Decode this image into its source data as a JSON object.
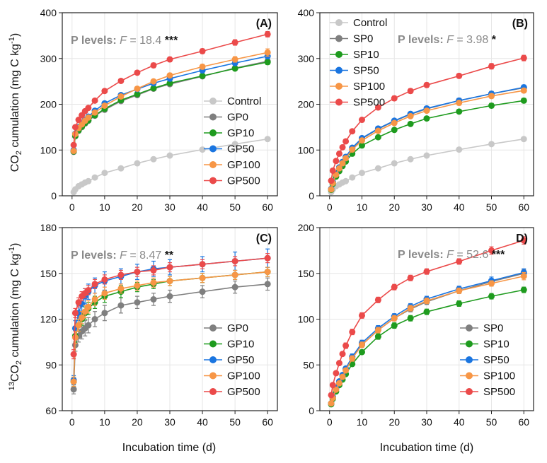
{
  "figure": {
    "y_label_top": {
      "base": "CO",
      "sub": "2",
      "mid": " cumulation (mg C kg",
      "sup": "-1",
      "end": ")"
    },
    "y_label_bottom": {
      "pre_sup": "13",
      "base": "CO",
      "sub": "2",
      "mid": " cumulation (mg C kg",
      "sup": "-1",
      "end": ")"
    },
    "x_label": "Incubation time (d)"
  },
  "chart_data": [
    {
      "type": "line",
      "panel": "(A)",
      "annotation": {
        "label": "P levels:",
        "f_symbol": "F",
        "f_value": "= 18.4",
        "stars": "***"
      },
      "x": [
        0.5,
        1,
        2,
        3,
        4,
        5,
        7,
        10,
        15,
        20,
        25,
        30,
        40,
        50,
        60
      ],
      "xlim": [
        -3,
        63
      ],
      "ylim": [
        0,
        400
      ],
      "xticks": [
        "0",
        "10",
        "20",
        "30",
        "40",
        "50",
        "60"
      ],
      "yticks": [
        "0",
        "100",
        "200",
        "300",
        "400"
      ],
      "legend_position": "bottom-right",
      "series": [
        {
          "name": "Control",
          "color": "#c8c8c8",
          "values": [
            8,
            14,
            21,
            25,
            29,
            32,
            40,
            50,
            60,
            71,
            80,
            88,
            101,
            113,
            124
          ],
          "err": [
            2,
            2,
            2,
            2,
            2,
            2,
            2,
            2,
            2,
            2,
            2,
            2,
            3,
            3,
            3
          ]
        },
        {
          "name": "GP0",
          "color": "#7f7f7f",
          "values": [
            96,
            130,
            142,
            150,
            158,
            164,
            175,
            188,
            207,
            220,
            234,
            244,
            261,
            279,
            294
          ],
          "err": [
            3,
            3,
            3,
            3,
            3,
            3,
            3,
            4,
            4,
            4,
            4,
            4,
            4,
            4,
            5
          ]
        },
        {
          "name": "GP10",
          "color": "#1e9b1e",
          "values": [
            97,
            131,
            143,
            151,
            159,
            165,
            176,
            190,
            209,
            222,
            235,
            246,
            262,
            278,
            292
          ],
          "err": [
            3,
            3,
            3,
            3,
            3,
            3,
            3,
            4,
            4,
            4,
            4,
            4,
            4,
            4,
            5
          ]
        },
        {
          "name": "GP50",
          "color": "#1a75e0",
          "values": [
            100,
            136,
            150,
            158,
            166,
            173,
            186,
            202,
            220,
            233,
            246,
            256,
            274,
            290,
            305
          ],
          "err": [
            3,
            3,
            3,
            3,
            3,
            3,
            4,
            4,
            4,
            4,
            4,
            5,
            5,
            5,
            6
          ]
        },
        {
          "name": "GP100",
          "color": "#f79646",
          "values": [
            98,
            135,
            148,
            156,
            164,
            171,
            182,
            197,
            217,
            234,
            250,
            263,
            282,
            298,
            313
          ],
          "err": [
            3,
            3,
            3,
            3,
            3,
            3,
            4,
            4,
            4,
            4,
            4,
            5,
            5,
            6,
            8
          ]
        },
        {
          "name": "GP500",
          "color": "#eb4a4a",
          "values": [
            111,
            150,
            166,
            176,
            185,
            192,
            208,
            229,
            251,
            269,
            285,
            298,
            316,
            335,
            353
          ],
          "err": [
            3,
            3,
            3,
            3,
            3,
            3,
            4,
            4,
            4,
            4,
            5,
            5,
            5,
            6,
            6
          ]
        }
      ]
    },
    {
      "type": "line",
      "panel": "(B)",
      "annotation": {
        "label": "P levels:",
        "f_symbol": "F",
        "f_value": "= 3.98",
        "stars": "*"
      },
      "x": [
        0.5,
        1,
        2,
        3,
        4,
        5,
        7,
        10,
        15,
        20,
        25,
        30,
        40,
        50,
        60
      ],
      "xlim": [
        -3,
        63
      ],
      "ylim": [
        0,
        400
      ],
      "xticks": [
        "0",
        "10",
        "20",
        "30",
        "40",
        "50",
        "60"
      ],
      "yticks": [
        "0",
        "100",
        "200",
        "300",
        "400"
      ],
      "legend_position": "top-left",
      "series": [
        {
          "name": "Control",
          "color": "#c8c8c8",
          "values": [
            8,
            14,
            21,
            25,
            29,
            32,
            40,
            50,
            60,
            71,
            80,
            88,
            101,
            113,
            124
          ],
          "err": [
            2,
            2,
            2,
            2,
            2,
            2,
            2,
            2,
            2,
            2,
            2,
            2,
            3,
            3,
            3
          ]
        },
        {
          "name": "SP0",
          "color": "#7f7f7f",
          "values": [
            15,
            30,
            48,
            62,
            74,
            85,
            104,
            125,
            146,
            163,
            178,
            190,
            208,
            223,
            236
          ],
          "err": [
            2,
            2,
            3,
            3,
            3,
            3,
            4,
            4,
            4,
            4,
            4,
            4,
            5,
            5,
            5
          ]
        },
        {
          "name": "SP10",
          "color": "#1e9b1e",
          "values": [
            13,
            26,
            42,
            54,
            65,
            75,
            92,
            110,
            128,
            144,
            157,
            169,
            184,
            197,
            208
          ],
          "err": [
            2,
            2,
            3,
            3,
            3,
            3,
            3,
            4,
            4,
            4,
            4,
            4,
            4,
            5,
            5
          ]
        },
        {
          "name": "SP50",
          "color": "#1a75e0",
          "values": [
            15,
            30,
            48,
            62,
            74,
            85,
            105,
            126,
            147,
            164,
            179,
            191,
            208,
            223,
            237
          ],
          "err": [
            2,
            2,
            3,
            3,
            3,
            3,
            4,
            4,
            4,
            4,
            4,
            4,
            5,
            5,
            5
          ]
        },
        {
          "name": "SP100",
          "color": "#f79646",
          "values": [
            14,
            28,
            46,
            60,
            71,
            82,
            101,
            121,
            142,
            159,
            174,
            186,
            203,
            218,
            230
          ],
          "err": [
            2,
            2,
            3,
            3,
            3,
            3,
            4,
            4,
            4,
            4,
            4,
            4,
            5,
            5,
            5
          ]
        },
        {
          "name": "SP500",
          "color": "#eb4a4a",
          "values": [
            33,
            55,
            76,
            92,
            106,
            119,
            141,
            166,
            193,
            213,
            229,
            242,
            262,
            283,
            301
          ],
          "err": [
            3,
            3,
            3,
            3,
            4,
            4,
            4,
            4,
            4,
            5,
            5,
            5,
            5,
            6,
            6
          ]
        }
      ]
    },
    {
      "type": "line",
      "panel": "(C)",
      "annotation": {
        "label": "P levels:",
        "f_symbol": "F",
        "f_value": "= 8.47",
        "stars": "**"
      },
      "x": [
        0.5,
        1,
        2,
        3,
        4,
        5,
        7,
        10,
        15,
        20,
        25,
        30,
        40,
        50,
        60
      ],
      "xlim": [
        -3,
        63
      ],
      "ylim": [
        60,
        180
      ],
      "xticks": [
        "0",
        "10",
        "20",
        "30",
        "40",
        "50",
        "60"
      ],
      "yticks": [
        "60",
        "90",
        "120",
        "150",
        "180"
      ],
      "legend_position": "bottom-right",
      "series": [
        {
          "name": "GP0",
          "color": "#7f7f7f",
          "values": [
            74,
            103,
            109,
            112,
            114,
            116,
            120,
            124,
            129,
            131,
            133,
            135,
            138,
            141,
            143
          ],
          "err": [
            3,
            4,
            4,
            5,
            5,
            5,
            5,
            5,
            5,
            4,
            4,
            4,
            4,
            4,
            4
          ]
        },
        {
          "name": "GP10",
          "color": "#1e9b1e",
          "values": [
            79,
            109,
            116,
            120,
            124,
            127,
            131,
            135,
            138,
            141,
            143,
            145,
            147,
            149,
            151
          ],
          "err": [
            3,
            4,
            4,
            4,
            4,
            4,
            4,
            4,
            4,
            3,
            3,
            3,
            3,
            3,
            3
          ]
        },
        {
          "name": "GP50",
          "color": "#1a75e0",
          "values": [
            80,
            114,
            124,
            130,
            135,
            138,
            142,
            145,
            148,
            151,
            153,
            154,
            156,
            158,
            160
          ],
          "err": [
            3,
            5,
            5,
            5,
            5,
            5,
            5,
            6,
            5,
            5,
            5,
            5,
            5,
            6,
            6
          ]
        },
        {
          "name": "GP100",
          "color": "#f79646",
          "values": [
            79,
            108,
            116,
            121,
            125,
            128,
            133,
            137,
            140,
            142,
            144,
            145,
            147,
            149,
            151
          ],
          "err": [
            3,
            4,
            4,
            4,
            4,
            4,
            4,
            4,
            3,
            3,
            3,
            3,
            3,
            3,
            3
          ]
        },
        {
          "name": "GP500",
          "color": "#eb4a4a",
          "values": [
            97,
            124,
            131,
            135,
            137,
            139,
            143,
            146,
            149,
            151,
            152,
            154,
            156,
            158,
            160
          ],
          "err": [
            3,
            3,
            3,
            3,
            3,
            3,
            3,
            3,
            3,
            3,
            3,
            3,
            3,
            3,
            3
          ]
        }
      ]
    },
    {
      "type": "line",
      "panel": "D)",
      "annotation": {
        "label": "P levels:",
        "f_symbol": "F",
        "f_value": "= 52.6",
        "stars": "***"
      },
      "x": [
        0.5,
        1,
        2,
        3,
        4,
        5,
        7,
        10,
        15,
        20,
        25,
        30,
        40,
        50,
        60
      ],
      "xlim": [
        -3,
        63
      ],
      "ylim": [
        0,
        200
      ],
      "xticks": [
        "0",
        "10",
        "20",
        "30",
        "40",
        "50",
        "60"
      ],
      "yticks": [
        "0",
        "50",
        "100",
        "150",
        "200"
      ],
      "legend_position": "bottom-right",
      "series": [
        {
          "name": "SP0",
          "color": "#7f7f7f",
          "values": [
            8,
            15,
            24,
            31,
            38,
            45,
            58,
            72,
            88,
            101,
            111,
            119,
            131,
            141,
            150
          ],
          "err": [
            2,
            2,
            2,
            2,
            2,
            2,
            3,
            3,
            3,
            3,
            3,
            3,
            3,
            3,
            4
          ]
        },
        {
          "name": "SP10",
          "color": "#1e9b1e",
          "values": [
            7,
            13,
            21,
            28,
            34,
            40,
            51,
            64,
            81,
            93,
            101,
            108,
            117,
            125,
            132
          ],
          "err": [
            2,
            2,
            2,
            2,
            2,
            2,
            2,
            2,
            3,
            3,
            3,
            3,
            3,
            3,
            3
          ]
        },
        {
          "name": "SP50",
          "color": "#1a75e0",
          "values": [
            8,
            15,
            25,
            32,
            39,
            46,
            59,
            74,
            90,
            103,
            114,
            122,
            133,
            142,
            151
          ],
          "err": [
            2,
            2,
            2,
            2,
            2,
            2,
            3,
            3,
            3,
            3,
            3,
            3,
            3,
            4,
            4
          ]
        },
        {
          "name": "SP100",
          "color": "#f79646",
          "values": [
            8,
            14,
            23,
            30,
            37,
            44,
            57,
            72,
            88,
            101,
            112,
            120,
            131,
            139,
            147
          ],
          "err": [
            2,
            2,
            2,
            2,
            2,
            2,
            3,
            3,
            3,
            3,
            3,
            3,
            3,
            3,
            4
          ]
        },
        {
          "name": "SP500",
          "color": "#eb4a4a",
          "values": [
            17,
            28,
            41,
            52,
            62,
            71,
            86,
            104,
            121,
            135,
            145,
            152,
            163,
            175,
            186
          ],
          "err": [
            2,
            2,
            2,
            2,
            2,
            3,
            3,
            3,
            3,
            3,
            3,
            3,
            3,
            4,
            4
          ]
        }
      ]
    }
  ]
}
